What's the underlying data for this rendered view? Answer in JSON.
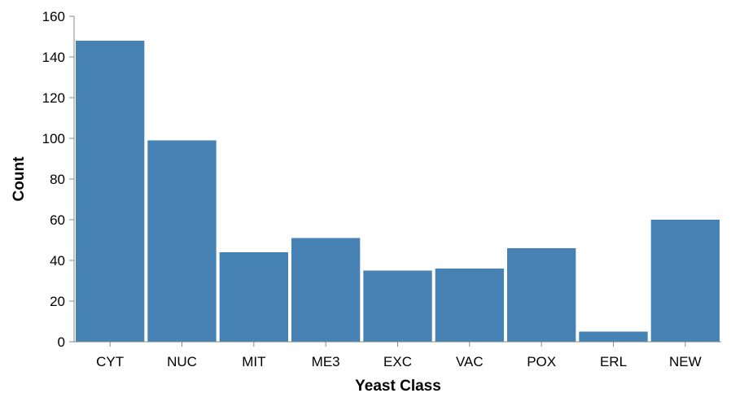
{
  "chart_data": {
    "type": "bar",
    "categories": [
      "CYT",
      "NUC",
      "MIT",
      "ME3",
      "EXC",
      "VAC",
      "POX",
      "ERL",
      "NEW"
    ],
    "values": [
      148,
      99,
      44,
      51,
      35,
      36,
      46,
      5,
      60
    ],
    "xlabel": "Yeast Class",
    "ylabel": "Count",
    "ylim": [
      0,
      160
    ],
    "yticks": [
      0,
      20,
      40,
      60,
      80,
      100,
      120,
      140,
      160
    ],
    "grid": false,
    "bar_color": "#4682b4"
  }
}
